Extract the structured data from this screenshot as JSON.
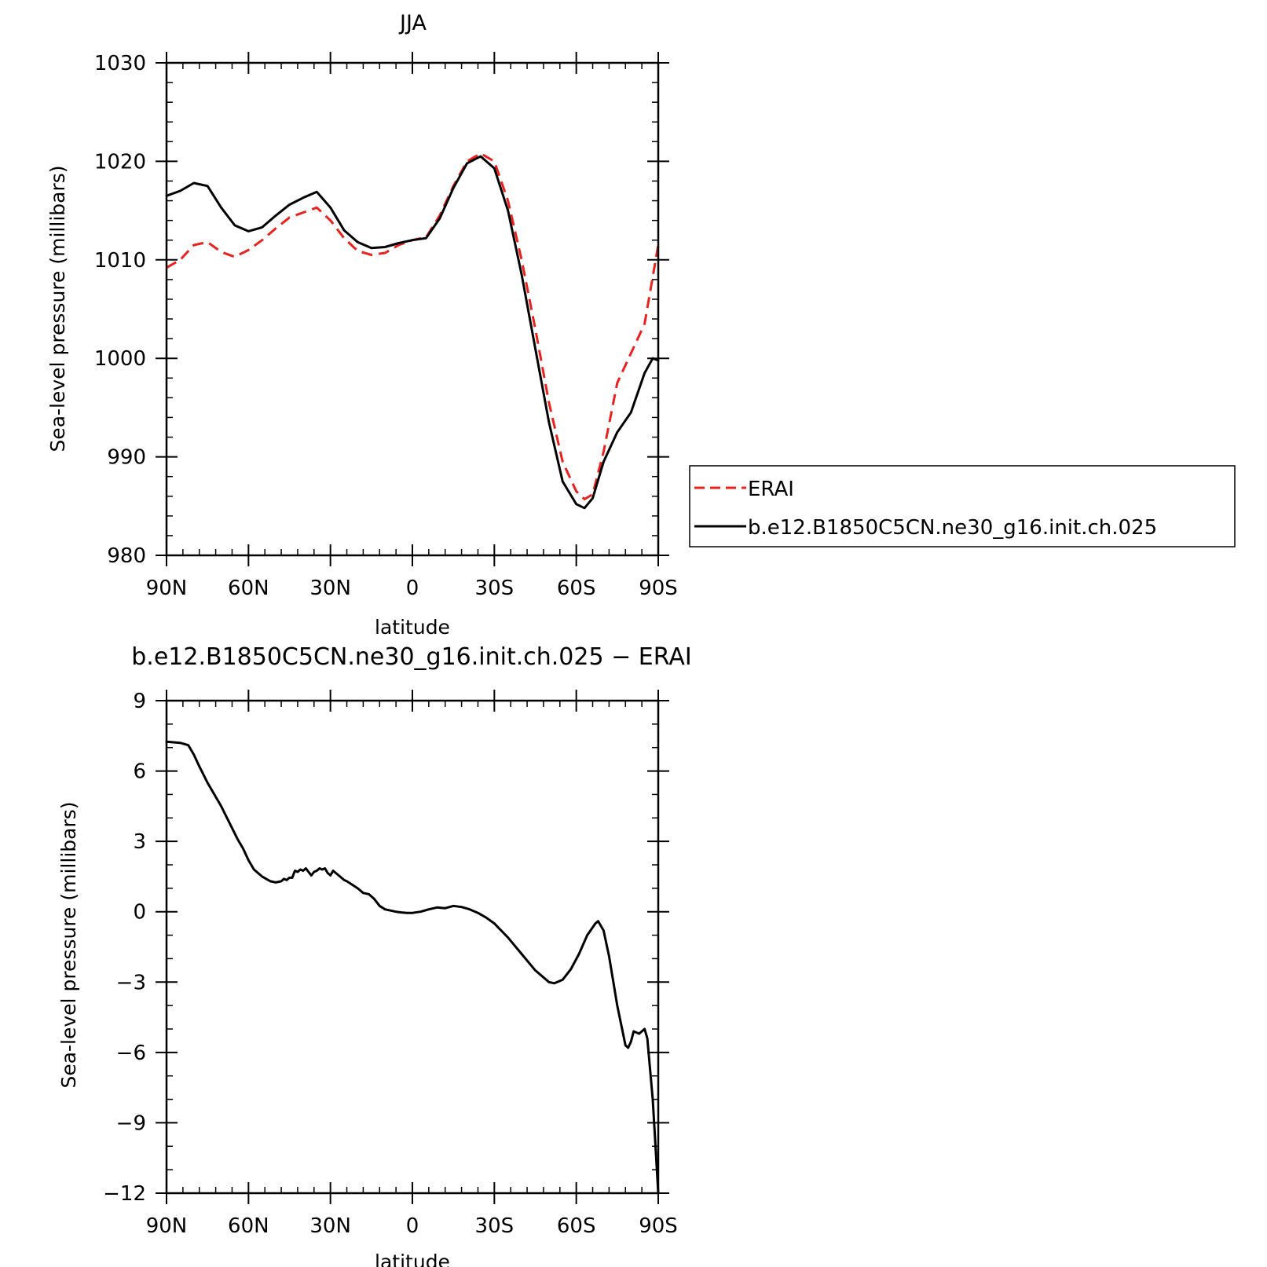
{
  "colors": {
    "erai": "#e8221e",
    "model": "#000000"
  },
  "chart_data": [
    {
      "type": "line",
      "title": "JJA",
      "xlabel": "latitude",
      "ylabel": "Sea-level pressure (millibars)",
      "xlim": [
        90,
        -90
      ],
      "ylim": [
        980,
        1030
      ],
      "yticks": [
        "980",
        "990",
        "1000",
        "1010",
        "1020",
        "1030"
      ],
      "xticks": [
        "90N",
        "60N",
        "30N",
        "0",
        "30S",
        "60S",
        "90S"
      ],
      "legend_position": "right",
      "series": [
        {
          "name": "ERAI",
          "style": "dashed",
          "color": "#e8221e",
          "x": [
            90,
            85,
            80,
            75,
            70,
            65,
            60,
            55,
            50,
            45,
            40,
            35,
            30,
            25,
            20,
            15,
            10,
            5,
            0,
            -5,
            -10,
            -15,
            -20,
            -25,
            -30,
            -35,
            -40,
            -45,
            -50,
            -55,
            -60,
            -63,
            -66,
            -70,
            -75,
            -80,
            -85,
            -90
          ],
          "y": [
            1009.2,
            1010.0,
            1011.5,
            1011.8,
            1010.8,
            1010.3,
            1011.0,
            1012.0,
            1013.2,
            1014.3,
            1014.8,
            1015.3,
            1014.0,
            1012.2,
            1010.9,
            1010.5,
            1010.7,
            1011.5,
            1012.0,
            1012.3,
            1014.5,
            1017.5,
            1020.0,
            1020.8,
            1020.0,
            1016.0,
            1010.0,
            1003.0,
            995.5,
            989.5,
            986.5,
            985.7,
            986.2,
            990.5,
            997.5,
            1000.5,
            1003.5,
            1011.5
          ]
        },
        {
          "name": "b.e12.B1850C5CN.ne30_g16.init.ch.025",
          "style": "solid",
          "color": "#000000",
          "x": [
            90,
            85,
            80,
            75,
            70,
            65,
            60,
            55,
            50,
            45,
            40,
            35,
            30,
            25,
            20,
            15,
            10,
            5,
            0,
            -5,
            -10,
            -15,
            -20,
            -25,
            -30,
            -35,
            -40,
            -45,
            -50,
            -55,
            -60,
            -63,
            -66,
            -70,
            -75,
            -80,
            -85,
            -88,
            -90
          ],
          "y": [
            1016.5,
            1017.0,
            1017.8,
            1017.5,
            1015.3,
            1013.5,
            1012.9,
            1013.3,
            1014.5,
            1015.6,
            1016.3,
            1016.9,
            1015.3,
            1013.0,
            1011.8,
            1011.2,
            1011.3,
            1011.7,
            1012.0,
            1012.2,
            1014.2,
            1017.3,
            1019.8,
            1020.5,
            1019.3,
            1015.0,
            1008.5,
            1001.0,
            993.5,
            987.5,
            985.2,
            984.8,
            985.8,
            989.5,
            992.5,
            994.5,
            998.5,
            1000.0,
            999.8
          ]
        }
      ]
    },
    {
      "type": "line",
      "title": "b.e12.B1850C5CN.ne30_g16.init.ch.025 − ERAI",
      "xlabel": "latitude",
      "ylabel": "Sea-level pressure (millibars)",
      "xlim": [
        90,
        -90
      ],
      "ylim": [
        -12,
        9
      ],
      "yticks": [
        "−12",
        "−9",
        "−6",
        "−3",
        "0",
        "3",
        "6",
        "9"
      ],
      "xticks": [
        "90N",
        "60N",
        "30N",
        "0",
        "30S",
        "60S",
        "90S"
      ],
      "series": [
        {
          "style": "solid",
          "color": "#000000",
          "x": [
            90,
            85,
            82,
            80,
            78,
            75,
            72,
            70,
            67,
            64,
            62,
            60,
            58,
            55,
            52,
            50,
            48,
            47,
            46,
            45,
            44,
            43,
            42,
            41,
            40,
            39,
            38,
            37,
            36,
            35,
            34,
            33,
            32,
            31,
            30,
            29,
            28,
            27,
            26,
            25,
            24,
            22,
            20,
            18,
            16,
            14,
            12,
            10,
            8,
            6,
            4,
            2,
            0,
            -3,
            -6,
            -9,
            -12,
            -15,
            -18,
            -21,
            -24,
            -27,
            -30,
            -35,
            -40,
            -45,
            -50,
            -52,
            -55,
            -58,
            -61,
            -64,
            -67,
            -68,
            -70,
            -72,
            -75,
            -78,
            -79,
            -80,
            -81,
            -82,
            -83,
            -84,
            -85,
            -86,
            -88,
            -90
          ],
          "y": [
            7.25,
            7.2,
            7.1,
            6.7,
            6.2,
            5.5,
            4.9,
            4.5,
            3.8,
            3.1,
            2.7,
            2.2,
            1.8,
            1.5,
            1.3,
            1.25,
            1.3,
            1.4,
            1.35,
            1.45,
            1.45,
            1.75,
            1.7,
            1.8,
            1.75,
            1.85,
            1.7,
            1.55,
            1.7,
            1.75,
            1.85,
            1.8,
            1.85,
            1.65,
            1.55,
            1.75,
            1.65,
            1.55,
            1.45,
            1.35,
            1.3,
            1.15,
            1.0,
            0.8,
            0.75,
            0.55,
            0.25,
            0.1,
            0.05,
            0.0,
            -0.03,
            -0.05,
            -0.05,
            0.0,
            0.1,
            0.18,
            0.15,
            0.25,
            0.2,
            0.1,
            -0.05,
            -0.25,
            -0.5,
            -1.1,
            -1.8,
            -2.5,
            -3.0,
            -3.05,
            -2.9,
            -2.45,
            -1.8,
            -1.0,
            -0.5,
            -0.4,
            -0.8,
            -1.9,
            -4.0,
            -5.7,
            -5.8,
            -5.55,
            -5.1,
            -5.15,
            -5.2,
            -5.1,
            -5.0,
            -5.4,
            -8.0,
            -12.0
          ]
        }
      ]
    }
  ]
}
